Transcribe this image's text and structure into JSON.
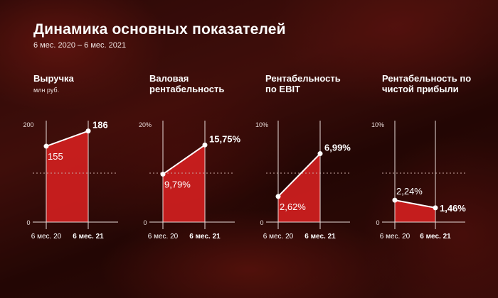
{
  "header": {
    "title": "Динамика основных показателей",
    "subtitle": "6 мес. 2020 – 6 мес. 2021"
  },
  "colors": {
    "bar": "#d01f1f",
    "line": "#ffffff",
    "axis": "#e8dcd9",
    "midline": "#c9a7a2"
  },
  "chart_data": [
    {
      "type": "bar",
      "title": "Выручка",
      "ylabel": "млн руб.",
      "categories": [
        "6 мес. 20",
        "6 мес. 21"
      ],
      "values": [
        155,
        186
      ],
      "value_labels": [
        "155",
        "186"
      ],
      "ylim": [
        0,
        200
      ],
      "ytick_labels": [
        "0",
        "200"
      ]
    },
    {
      "type": "bar",
      "title": "Валовая рентабельность",
      "ylabel": "",
      "categories": [
        "6 мес. 20",
        "6 мес. 21"
      ],
      "values": [
        9.79,
        15.75
      ],
      "value_labels": [
        "9,79%",
        "15,75%"
      ],
      "ylim": [
        0,
        20
      ],
      "ytick_labels": [
        "0",
        "20%"
      ]
    },
    {
      "type": "bar",
      "title": "Рентабельность по EBIT",
      "ylabel": "",
      "categories": [
        "6 мес. 20",
        "6 мес. 21"
      ],
      "values": [
        2.62,
        6.99
      ],
      "value_labels": [
        "2,62%",
        "6,99%"
      ],
      "ylim": [
        0,
        10
      ],
      "ytick_labels": [
        "0",
        "10%"
      ]
    },
    {
      "type": "bar",
      "title": "Рентабельность по чистой прибыли",
      "ylabel": "",
      "categories": [
        "6 мес. 20",
        "6 мес. 21"
      ],
      "values": [
        2.24,
        1.46
      ],
      "value_labels": [
        "2,24%",
        "1,46%"
      ],
      "ylim": [
        0,
        10
      ],
      "ytick_labels": [
        "0",
        "10%"
      ]
    }
  ]
}
